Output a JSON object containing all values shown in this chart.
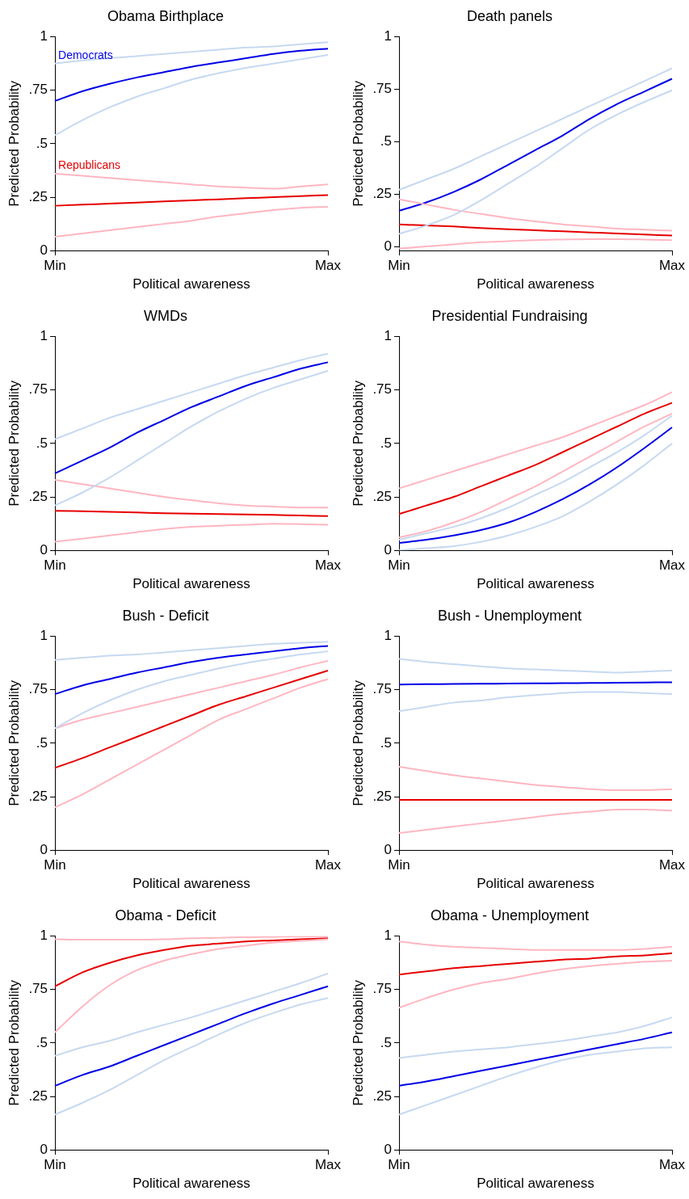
{
  "chart_data": [
    {
      "type": "line",
      "title": "Obama Birthplace",
      "xlabel": "Political awareness",
      "ylabel": "Predicted Probability",
      "categories": [
        "Min",
        null,
        null,
        null,
        null,
        null,
        null,
        null,
        null,
        null,
        "Max"
      ],
      "ylim": [
        0,
        1
      ],
      "yticks": [
        {
          "value": 0,
          "label": "0"
        },
        {
          "value": 0.25,
          "label": ".25"
        },
        {
          "value": 0.5,
          "label": ".5"
        },
        {
          "value": 0.75,
          "label": ".75"
        },
        {
          "value": 1,
          "label": "1"
        }
      ],
      "grid": false,
      "legend": false,
      "series": [
        {
          "color": "#c6d9f1",
          "values": [
            0.54,
            0.61,
            0.67,
            0.72,
            0.76,
            0.8,
            0.83,
            0.855,
            0.875,
            0.895,
            0.915
          ]
        },
        {
          "color": "#c6d9f1",
          "values": [
            0.875,
            0.89,
            0.9,
            0.91,
            0.92,
            0.93,
            0.94,
            0.95,
            0.955,
            0.965,
            0.975
          ]
        },
        {
          "color": "#ffb6c1",
          "values": [
            0.065,
            0.08,
            0.095,
            0.11,
            0.125,
            0.14,
            0.16,
            0.175,
            0.19,
            0.2,
            0.205
          ]
        },
        {
          "color": "#ffb6c1",
          "values": [
            0.36,
            0.35,
            0.34,
            0.33,
            0.32,
            0.31,
            0.3,
            0.295,
            0.29,
            0.3,
            0.31
          ]
        },
        {
          "name": "Democrats",
          "color": "#0000e6",
          "values": [
            0.7,
            0.745,
            0.78,
            0.81,
            0.835,
            0.86,
            0.88,
            0.9,
            0.92,
            0.935,
            0.945
          ]
        },
        {
          "name": "Republicans",
          "color": "#e60000",
          "values": [
            0.21,
            0.215,
            0.22,
            0.225,
            0.23,
            0.235,
            0.24,
            0.245,
            0.25,
            0.255,
            0.26
          ]
        }
      ]
    },
    {
      "type": "line",
      "title": "Death panels",
      "xlabel": "Political awareness",
      "ylabel": "Predicted Probability",
      "categories": [
        "Min",
        null,
        null,
        null,
        null,
        null,
        null,
        null,
        null,
        null,
        "Max"
      ],
      "ylim": [
        -0.02,
        1
      ],
      "yticks": [
        {
          "value": 0,
          "label": "0"
        },
        {
          "value": 0.25,
          "label": ".25"
        },
        {
          "value": 0.5,
          "label": ".5"
        },
        {
          "value": 0.75,
          "label": ".75"
        },
        {
          "value": 1,
          "label": "1"
        }
      ],
      "grid": false,
      "legend": false,
      "series": [
        {
          "color": "#c6d9f1",
          "values": [
            0.06,
            0.1,
            0.15,
            0.22,
            0.3,
            0.38,
            0.47,
            0.56,
            0.63,
            0.69,
            0.745
          ]
        },
        {
          "color": "#c6d9f1",
          "values": [
            0.27,
            0.32,
            0.37,
            0.43,
            0.49,
            0.55,
            0.61,
            0.67,
            0.73,
            0.79,
            0.85
          ]
        },
        {
          "color": "#ffb6c1",
          "values": [
            -0.01,
            0.0,
            0.01,
            0.02,
            0.025,
            0.03,
            0.033,
            0.035,
            0.035,
            0.033,
            0.03
          ]
        },
        {
          "color": "#ffb6c1",
          "values": [
            0.225,
            0.2,
            0.175,
            0.155,
            0.135,
            0.12,
            0.105,
            0.095,
            0.085,
            0.08,
            0.075
          ]
        },
        {
          "color": "#0000e6",
          "values": [
            0.17,
            0.21,
            0.26,
            0.32,
            0.39,
            0.46,
            0.53,
            0.61,
            0.68,
            0.74,
            0.8
          ]
        },
        {
          "color": "#e60000",
          "values": [
            0.105,
            0.1,
            0.095,
            0.088,
            0.082,
            0.077,
            0.072,
            0.067,
            0.062,
            0.057,
            0.052
          ]
        }
      ]
    },
    {
      "type": "line",
      "title": "WMDs",
      "xlabel": "Political awareness",
      "ylabel": "Predicted Probability",
      "categories": [
        "Min",
        null,
        null,
        null,
        null,
        null,
        null,
        null,
        null,
        null,
        "Max"
      ],
      "ylim": [
        0,
        1
      ],
      "yticks": [
        {
          "value": 0,
          "label": "0"
        },
        {
          "value": 0.25,
          "label": ".25"
        },
        {
          "value": 0.5,
          "label": ".5"
        },
        {
          "value": 0.75,
          "label": ".75"
        },
        {
          "value": 1,
          "label": "1"
        }
      ],
      "grid": false,
      "legend": false,
      "series": [
        {
          "color": "#c6d9f1",
          "values": [
            0.21,
            0.27,
            0.34,
            0.42,
            0.5,
            0.58,
            0.65,
            0.71,
            0.76,
            0.8,
            0.84
          ]
        },
        {
          "color": "#c6d9f1",
          "values": [
            0.52,
            0.57,
            0.62,
            0.66,
            0.7,
            0.74,
            0.78,
            0.82,
            0.855,
            0.89,
            0.92
          ]
        },
        {
          "color": "#ffb6c1",
          "values": [
            0.04,
            0.055,
            0.07,
            0.085,
            0.1,
            0.11,
            0.115,
            0.12,
            0.125,
            0.123,
            0.12
          ]
        },
        {
          "color": "#ffb6c1",
          "values": [
            0.33,
            0.31,
            0.29,
            0.27,
            0.25,
            0.235,
            0.22,
            0.21,
            0.205,
            0.2,
            0.2
          ]
        },
        {
          "color": "#0000e6",
          "values": [
            0.36,
            0.42,
            0.48,
            0.55,
            0.61,
            0.67,
            0.72,
            0.77,
            0.81,
            0.85,
            0.88
          ]
        },
        {
          "color": "#e60000",
          "values": [
            0.185,
            0.183,
            0.18,
            0.177,
            0.174,
            0.172,
            0.17,
            0.168,
            0.166,
            0.163,
            0.16
          ]
        }
      ]
    },
    {
      "type": "line",
      "title": "Presidential Fundraising",
      "xlabel": "Political awareness",
      "ylabel": "Predicted Probability",
      "categories": [
        "Min",
        null,
        null,
        null,
        null,
        null,
        null,
        null,
        null,
        null,
        "Max"
      ],
      "ylim": [
        0,
        1
      ],
      "yticks": [
        {
          "value": 0,
          "label": "0"
        },
        {
          "value": 0.25,
          "label": ".25"
        },
        {
          "value": 0.5,
          "label": ".5"
        },
        {
          "value": 0.75,
          "label": ".75"
        },
        {
          "value": 1,
          "label": "1"
        }
      ],
      "grid": false,
      "legend": false,
      "series": [
        {
          "color": "#c6d9f1",
          "values": [
            0.0,
            0.01,
            0.02,
            0.04,
            0.07,
            0.11,
            0.16,
            0.23,
            0.31,
            0.4,
            0.5
          ]
        },
        {
          "color": "#c6d9f1",
          "values": [
            0.05,
            0.08,
            0.11,
            0.15,
            0.2,
            0.26,
            0.32,
            0.39,
            0.46,
            0.54,
            0.63
          ]
        },
        {
          "color": "#ffb6c1",
          "values": [
            0.06,
            0.09,
            0.13,
            0.18,
            0.24,
            0.3,
            0.37,
            0.44,
            0.51,
            0.58,
            0.64
          ]
        },
        {
          "color": "#ffb6c1",
          "values": [
            0.29,
            0.33,
            0.37,
            0.41,
            0.45,
            0.49,
            0.53,
            0.58,
            0.63,
            0.68,
            0.74
          ]
        },
        {
          "color": "#0000e6",
          "values": [
            0.035,
            0.05,
            0.07,
            0.095,
            0.13,
            0.18,
            0.24,
            0.31,
            0.39,
            0.48,
            0.575
          ]
        },
        {
          "color": "#e60000",
          "values": [
            0.17,
            0.21,
            0.25,
            0.3,
            0.35,
            0.4,
            0.46,
            0.52,
            0.58,
            0.64,
            0.69
          ]
        }
      ]
    },
    {
      "type": "line",
      "title": "Bush - Deficit",
      "xlabel": "Political awareness",
      "ylabel": "Predicted Probability",
      "categories": [
        "Min",
        null,
        null,
        null,
        null,
        null,
        null,
        null,
        null,
        null,
        "Max"
      ],
      "ylim": [
        0,
        1
      ],
      "yticks": [
        {
          "value": 0,
          "label": "0"
        },
        {
          "value": 0.25,
          "label": ".25"
        },
        {
          "value": 0.5,
          "label": ".5"
        },
        {
          "value": 0.75,
          "label": ".75"
        },
        {
          "value": 1,
          "label": "1"
        }
      ],
      "grid": false,
      "legend": false,
      "series": [
        {
          "color": "#c6d9f1",
          "values": [
            0.57,
            0.64,
            0.7,
            0.75,
            0.79,
            0.82,
            0.85,
            0.875,
            0.895,
            0.915,
            0.93
          ]
        },
        {
          "color": "#c6d9f1",
          "values": [
            0.89,
            0.9,
            0.91,
            0.915,
            0.925,
            0.935,
            0.945,
            0.955,
            0.965,
            0.97,
            0.975
          ]
        },
        {
          "color": "#ffb6c1",
          "values": [
            0.2,
            0.26,
            0.33,
            0.4,
            0.47,
            0.54,
            0.61,
            0.66,
            0.71,
            0.76,
            0.8
          ]
        },
        {
          "color": "#ffb6c1",
          "values": [
            0.57,
            0.61,
            0.64,
            0.67,
            0.7,
            0.73,
            0.76,
            0.79,
            0.82,
            0.855,
            0.885
          ]
        },
        {
          "color": "#0000e6",
          "values": [
            0.73,
            0.77,
            0.8,
            0.83,
            0.855,
            0.88,
            0.9,
            0.915,
            0.93,
            0.945,
            0.955
          ]
        },
        {
          "color": "#e60000",
          "values": [
            0.385,
            0.43,
            0.48,
            0.53,
            0.58,
            0.63,
            0.68,
            0.72,
            0.76,
            0.8,
            0.84
          ]
        }
      ]
    },
    {
      "type": "line",
      "title": "Bush - Unemployment",
      "xlabel": "Political awareness",
      "ylabel": "Predicted Probability",
      "categories": [
        "Min",
        null,
        null,
        null,
        null,
        null,
        null,
        null,
        null,
        null,
        "Max"
      ],
      "ylim": [
        0,
        1
      ],
      "yticks": [
        {
          "value": 0,
          "label": "0"
        },
        {
          "value": 0.25,
          "label": ".25"
        },
        {
          "value": 0.5,
          "label": ".5"
        },
        {
          "value": 0.75,
          "label": ".75"
        },
        {
          "value": 1,
          "label": "1"
        }
      ],
      "grid": false,
      "legend": false,
      "series": [
        {
          "color": "#c6d9f1",
          "values": [
            0.65,
            0.67,
            0.69,
            0.7,
            0.715,
            0.725,
            0.735,
            0.74,
            0.74,
            0.735,
            0.73
          ]
        },
        {
          "color": "#c6d9f1",
          "values": [
            0.895,
            0.88,
            0.87,
            0.86,
            0.85,
            0.845,
            0.84,
            0.835,
            0.83,
            0.835,
            0.84
          ]
        },
        {
          "color": "#ffb6c1",
          "values": [
            0.08,
            0.095,
            0.11,
            0.125,
            0.14,
            0.155,
            0.17,
            0.18,
            0.19,
            0.19,
            0.185
          ]
        },
        {
          "color": "#ffb6c1",
          "values": [
            0.39,
            0.37,
            0.35,
            0.335,
            0.32,
            0.305,
            0.295,
            0.285,
            0.28,
            0.28,
            0.285
          ]
        },
        {
          "color": "#0000e6",
          "values": [
            0.775,
            0.776,
            0.777,
            0.778,
            0.779,
            0.78,
            0.781,
            0.782,
            0.783,
            0.784,
            0.785
          ]
        },
        {
          "color": "#e60000",
          "values": [
            0.235,
            0.235,
            0.235,
            0.235,
            0.235,
            0.235,
            0.235,
            0.235,
            0.235,
            0.235,
            0.235
          ]
        }
      ]
    },
    {
      "type": "line",
      "title": "Obama - Deficit",
      "xlabel": "Political awareness",
      "ylabel": "Predicted Probability",
      "categories": [
        "Min",
        null,
        null,
        null,
        null,
        null,
        null,
        null,
        null,
        null,
        "Max"
      ],
      "ylim": [
        0,
        1
      ],
      "yticks": [
        {
          "value": 0,
          "label": "0"
        },
        {
          "value": 0.25,
          "label": ".25"
        },
        {
          "value": 0.5,
          "label": ".5"
        },
        {
          "value": 0.75,
          "label": ".75"
        },
        {
          "value": 1,
          "label": "1"
        }
      ],
      "grid": false,
      "legend": false,
      "series": [
        {
          "color": "#c6d9f1",
          "values": [
            0.165,
            0.22,
            0.28,
            0.35,
            0.42,
            0.48,
            0.54,
            0.595,
            0.64,
            0.68,
            0.71
          ]
        },
        {
          "color": "#c6d9f1",
          "values": [
            0.44,
            0.48,
            0.51,
            0.55,
            0.585,
            0.62,
            0.66,
            0.7,
            0.74,
            0.78,
            0.825
          ]
        },
        {
          "color": "#ffb6c1",
          "values": [
            0.55,
            0.67,
            0.77,
            0.84,
            0.885,
            0.915,
            0.94,
            0.955,
            0.97,
            0.978,
            0.985
          ]
        },
        {
          "color": "#ffb6c1",
          "values": [
            0.985,
            0.983,
            0.983,
            0.983,
            0.985,
            0.99,
            0.992,
            0.995,
            0.997,
            0.998,
            0.998
          ]
        },
        {
          "color": "#0000e6",
          "values": [
            0.3,
            0.35,
            0.39,
            0.44,
            0.49,
            0.54,
            0.59,
            0.64,
            0.685,
            0.725,
            0.765
          ]
        },
        {
          "color": "#e60000",
          "values": [
            0.765,
            0.83,
            0.875,
            0.91,
            0.935,
            0.955,
            0.965,
            0.975,
            0.98,
            0.985,
            0.99
          ]
        }
      ]
    },
    {
      "type": "line",
      "title": "Obama - Unemployment",
      "xlabel": "Political awareness",
      "ylabel": "Predicted Probability",
      "categories": [
        "Min",
        null,
        null,
        null,
        null,
        null,
        null,
        null,
        null,
        null,
        "Max"
      ],
      "ylim": [
        0,
        1
      ],
      "yticks": [
        {
          "value": 0,
          "label": "0"
        },
        {
          "value": 0.25,
          "label": ".25"
        },
        {
          "value": 0.5,
          "label": ".5"
        },
        {
          "value": 0.75,
          "label": ".75"
        },
        {
          "value": 1,
          "label": "1"
        }
      ],
      "grid": false,
      "legend": false,
      "series": [
        {
          "color": "#c6d9f1",
          "values": [
            0.165,
            0.21,
            0.255,
            0.3,
            0.345,
            0.385,
            0.42,
            0.445,
            0.46,
            0.475,
            0.48
          ]
        },
        {
          "color": "#c6d9f1",
          "values": [
            0.43,
            0.445,
            0.46,
            0.47,
            0.48,
            0.495,
            0.51,
            0.53,
            0.55,
            0.58,
            0.62
          ]
        },
        {
          "color": "#ffb6c1",
          "values": [
            0.665,
            0.71,
            0.75,
            0.78,
            0.8,
            0.825,
            0.845,
            0.86,
            0.87,
            0.88,
            0.885
          ]
        },
        {
          "color": "#ffb6c1",
          "values": [
            0.975,
            0.96,
            0.95,
            0.945,
            0.94,
            0.935,
            0.935,
            0.935,
            0.935,
            0.94,
            0.95
          ]
        },
        {
          "color": "#0000e6",
          "values": [
            0.3,
            0.32,
            0.345,
            0.37,
            0.395,
            0.42,
            0.445,
            0.47,
            0.495,
            0.52,
            0.55
          ]
        },
        {
          "color": "#e60000",
          "values": [
            0.82,
            0.835,
            0.85,
            0.86,
            0.87,
            0.88,
            0.89,
            0.895,
            0.905,
            0.91,
            0.92
          ]
        }
      ]
    }
  ]
}
